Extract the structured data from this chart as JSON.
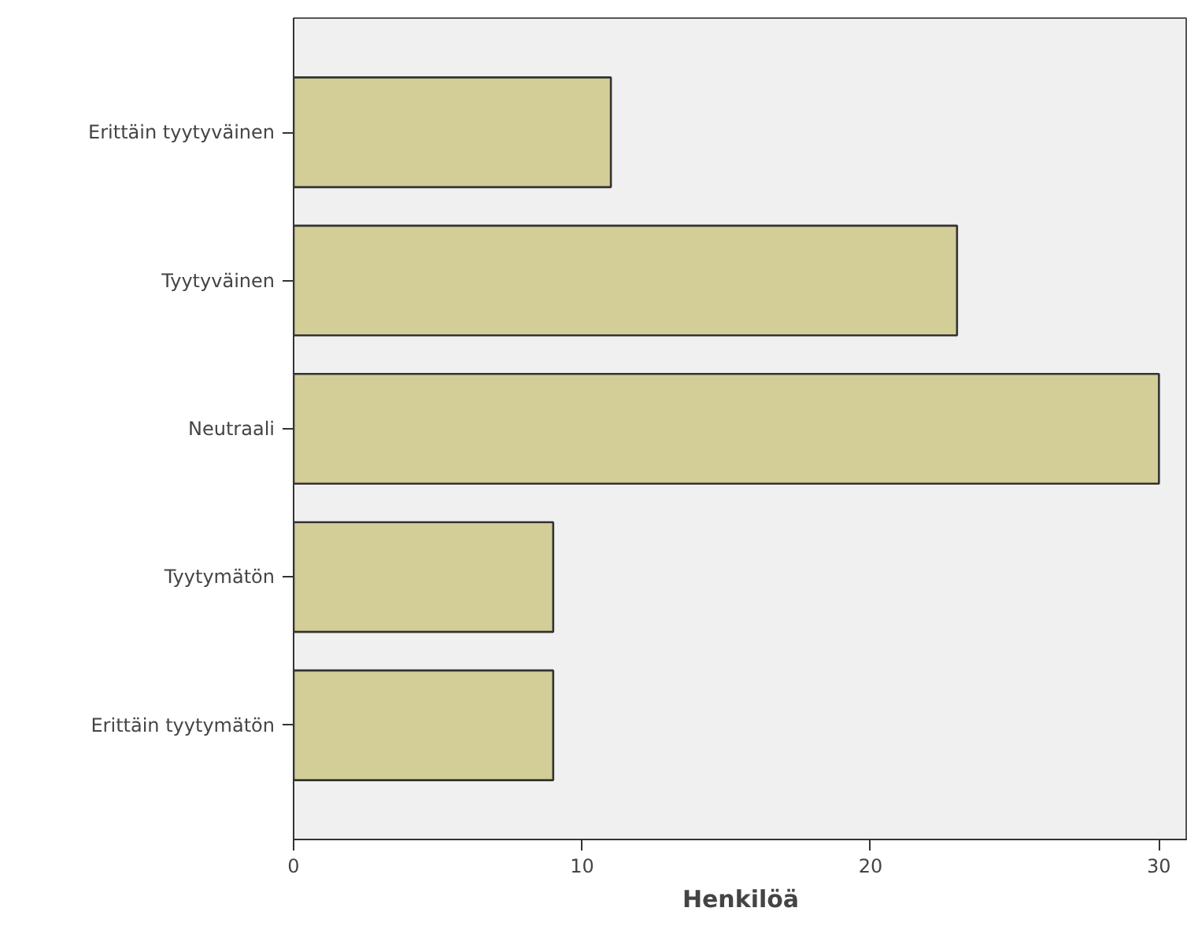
{
  "chart_data": {
    "type": "bar",
    "orientation": "horizontal",
    "xlabel": "Henkilöä",
    "categories": [
      "Erittäin tyytyväinen",
      "Tyytyväinen",
      "Neutraali",
      "Tyytymätön",
      "Erittäin tyytymätön"
    ],
    "values": [
      11,
      23,
      30,
      9,
      9
    ],
    "color": "#d3ce97",
    "xlim": [
      0,
      31
    ],
    "xticks": [
      0,
      10,
      20,
      30
    ],
    "grid": false
  }
}
